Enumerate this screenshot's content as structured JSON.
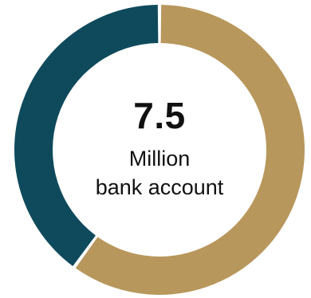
{
  "chart_data": {
    "type": "pie",
    "variant": "donut",
    "title": "",
    "slices": [
      {
        "label": "",
        "value": 60,
        "color": "#B8975C"
      },
      {
        "label": "",
        "value": 40,
        "color": "#0E4A5C"
      }
    ],
    "center_text": {
      "value": "7.5",
      "line1": "Million",
      "line2": "bank account"
    },
    "legend": "none"
  }
}
